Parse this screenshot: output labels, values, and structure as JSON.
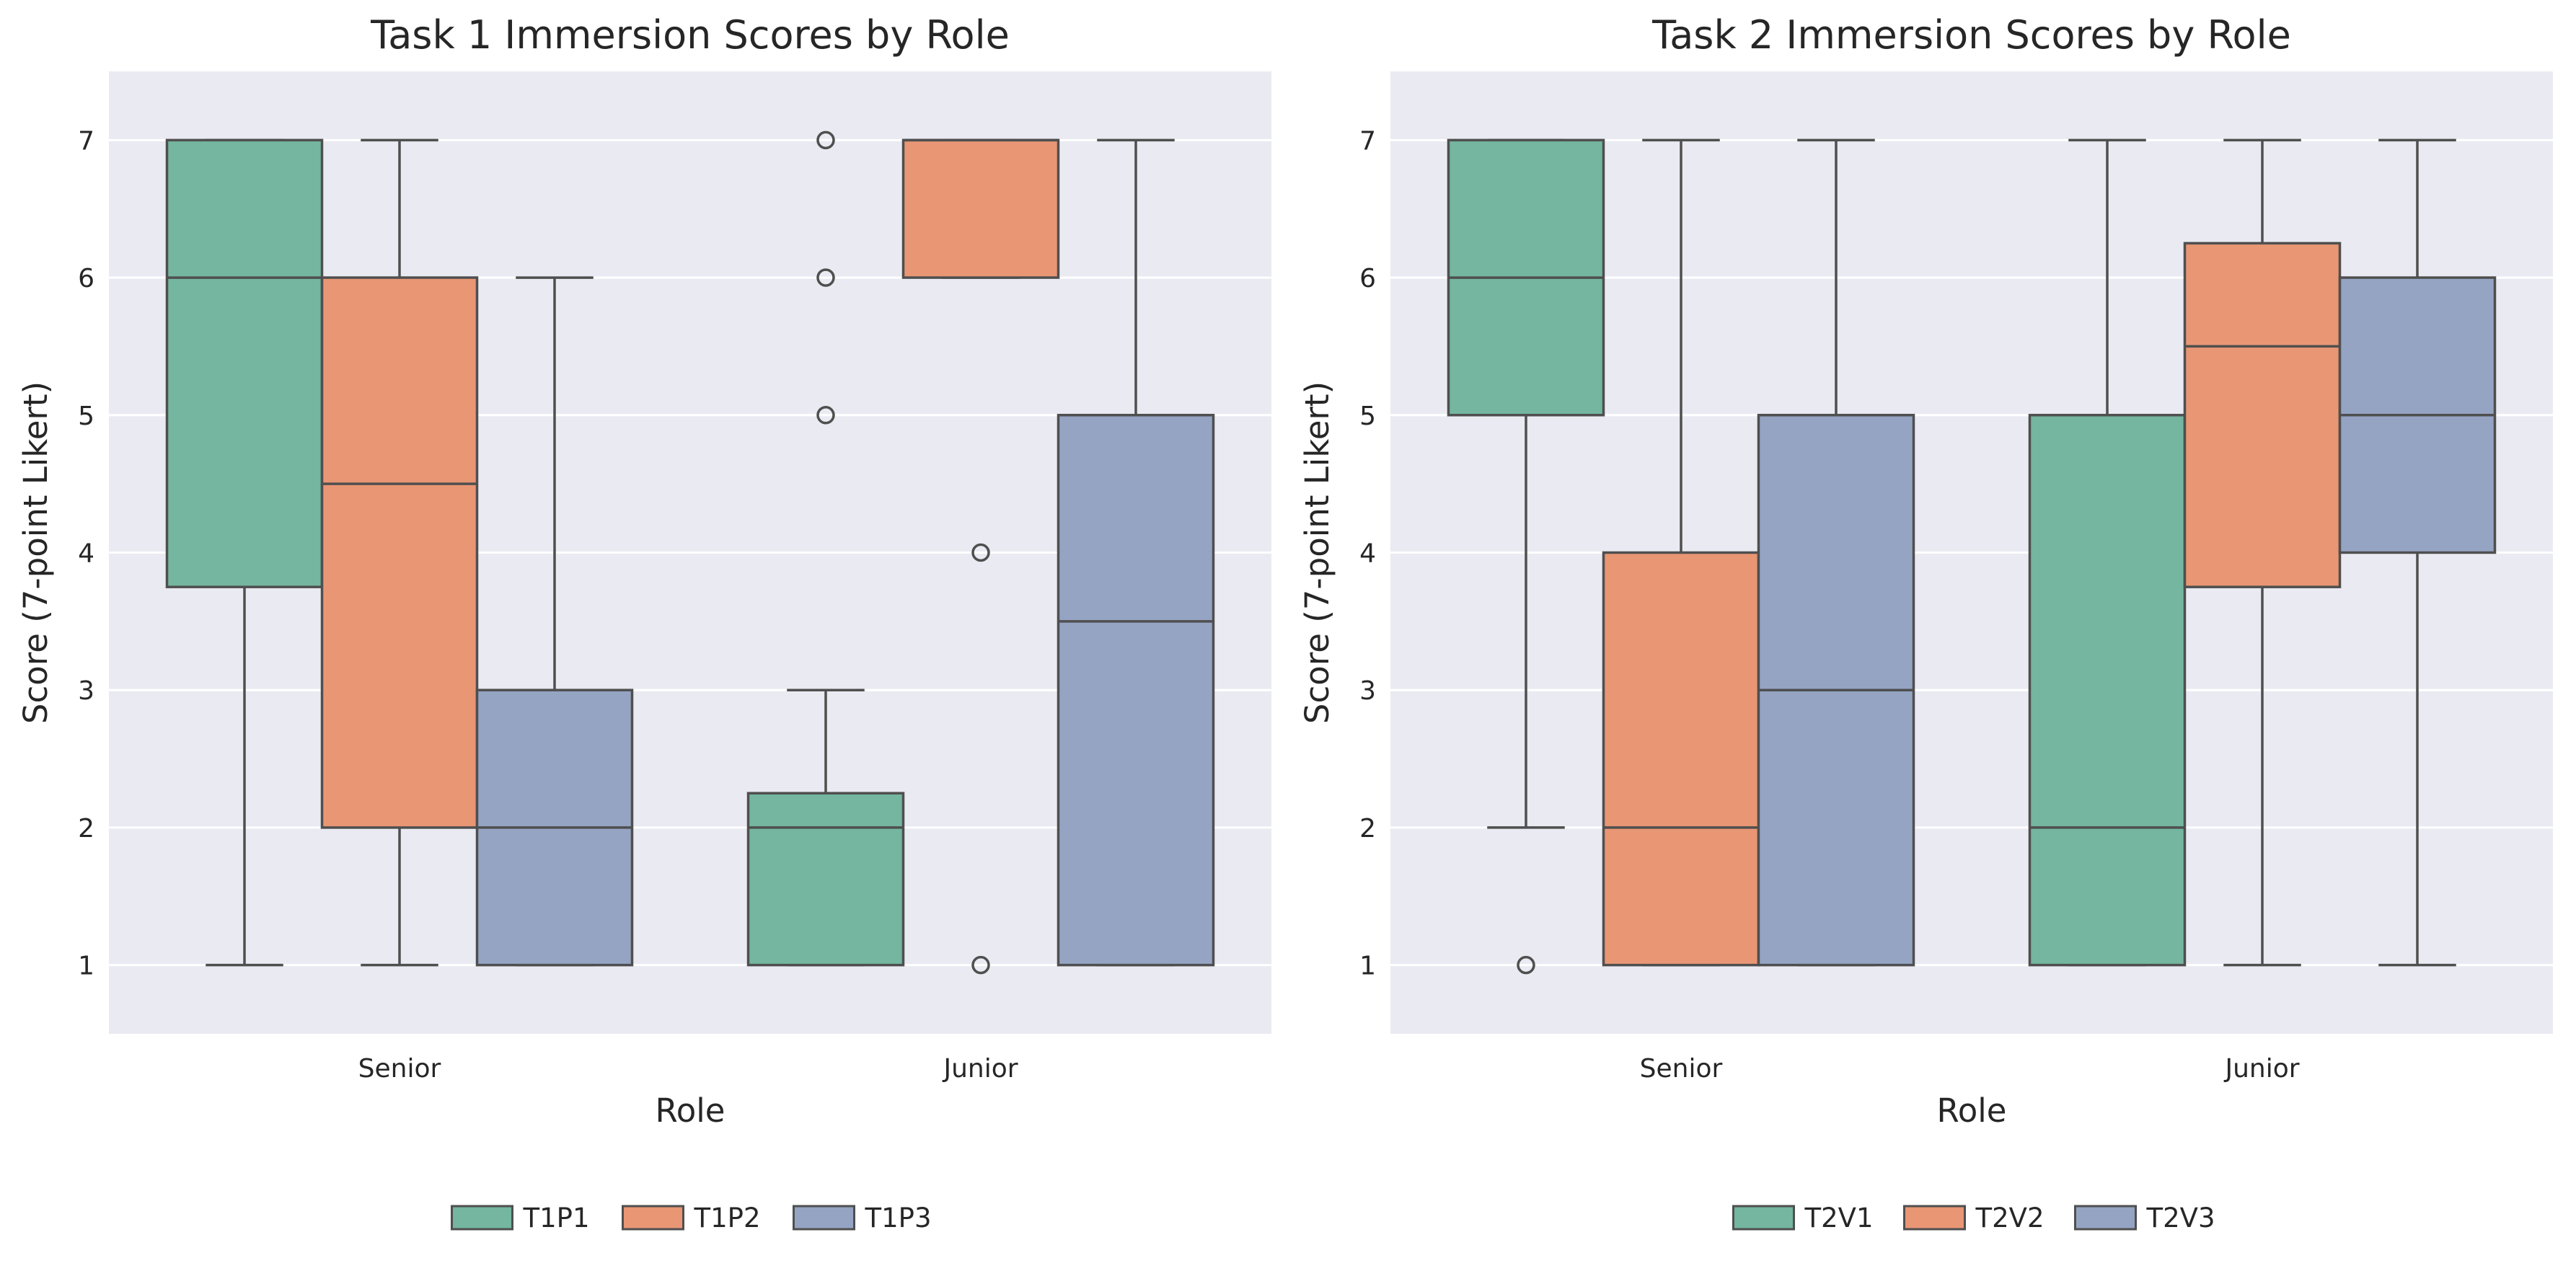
{
  "chart_data": [
    {
      "type": "box",
      "title": "Task 1 Immersion Scores by Role",
      "xlabel": "Role",
      "ylabel": "Score (7-point Likert)",
      "categories": [
        "Senior",
        "Junior"
      ],
      "yticks": [
        1,
        2,
        3,
        4,
        5,
        6,
        7
      ],
      "ylim": [
        0.5,
        7.5
      ],
      "grid": true,
      "legend_position": "bottom-center",
      "series": [
        {
          "name": "T1P1",
          "color": "#74b6a0",
          "boxes": [
            {
              "category": "Senior",
              "whisker_low": 1,
              "q1": 3.75,
              "median": 6,
              "q3": 7,
              "whisker_high": 7,
              "outliers": []
            },
            {
              "category": "Junior",
              "whisker_low": 1,
              "q1": 1,
              "median": 2,
              "q3": 2.25,
              "whisker_high": 3,
              "outliers": [
                5,
                6,
                7
              ]
            }
          ]
        },
        {
          "name": "T1P2",
          "color": "#e99674",
          "boxes": [
            {
              "category": "Senior",
              "whisker_low": 1,
              "q1": 2,
              "median": 4.5,
              "q3": 6,
              "whisker_high": 7,
              "outliers": []
            },
            {
              "category": "Junior",
              "whisker_low": 6,
              "q1": 6,
              "median": 7,
              "q3": 7,
              "whisker_high": 7,
              "outliers": [
                1,
                4
              ]
            }
          ]
        },
        {
          "name": "T1P3",
          "color": "#95a4c3",
          "boxes": [
            {
              "category": "Senior",
              "whisker_low": 1,
              "q1": 1,
              "median": 2,
              "q3": 3,
              "whisker_high": 6,
              "outliers": []
            },
            {
              "category": "Junior",
              "whisker_low": 1,
              "q1": 1,
              "median": 3.5,
              "q3": 5,
              "whisker_high": 7,
              "outliers": []
            }
          ]
        }
      ]
    },
    {
      "type": "box",
      "title": "Task 2 Immersion Scores by Role",
      "xlabel": "Role",
      "ylabel": "Score (7-point Likert)",
      "categories": [
        "Senior",
        "Junior"
      ],
      "yticks": [
        1,
        2,
        3,
        4,
        5,
        6,
        7
      ],
      "ylim": [
        0.5,
        7.5
      ],
      "grid": true,
      "legend_position": "bottom-center",
      "series": [
        {
          "name": "T2V1",
          "color": "#74b6a0",
          "boxes": [
            {
              "category": "Senior",
              "whisker_low": 2,
              "q1": 5,
              "median": 6,
              "q3": 7,
              "whisker_high": 7,
              "outliers": [
                1
              ]
            },
            {
              "category": "Junior",
              "whisker_low": 1,
              "q1": 1,
              "median": 2,
              "q3": 5,
              "whisker_high": 7,
              "outliers": []
            }
          ]
        },
        {
          "name": "T2V2",
          "color": "#e99674",
          "boxes": [
            {
              "category": "Senior",
              "whisker_low": 1,
              "q1": 1,
              "median": 2,
              "q3": 4,
              "whisker_high": 7,
              "outliers": []
            },
            {
              "category": "Junior",
              "whisker_low": 1,
              "q1": 3.75,
              "median": 5.5,
              "q3": 6.25,
              "whisker_high": 7,
              "outliers": []
            }
          ]
        },
        {
          "name": "T2V3",
          "color": "#95a4c3",
          "boxes": [
            {
              "category": "Senior",
              "whisker_low": 1,
              "q1": 1,
              "median": 3,
              "q3": 5,
              "whisker_high": 7,
              "outliers": []
            },
            {
              "category": "Junior",
              "whisker_low": 1,
              "q1": 4,
              "median": 5,
              "q3": 6,
              "whisker_high": 7,
              "outliers": []
            }
          ]
        }
      ]
    }
  ]
}
